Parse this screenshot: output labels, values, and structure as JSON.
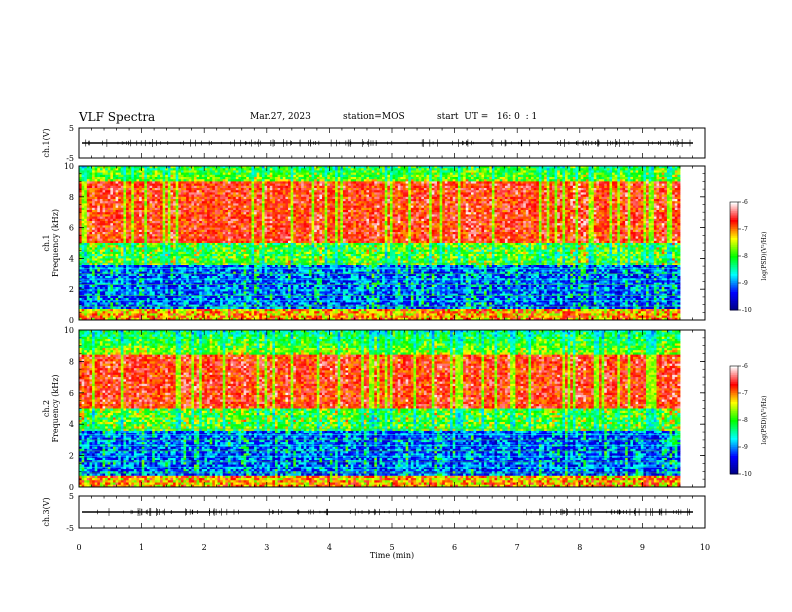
{
  "header": {
    "title": "VLF Spectra",
    "date": "Mar.27, 2023",
    "station": "station=MOS",
    "start": "start  UT =   16: 0  : 1"
  },
  "chart_data": [
    {
      "id": "ch1-waveform",
      "type": "line",
      "ylabel": "ch.1(V)",
      "ylim": [
        -5,
        5
      ],
      "yticks": [
        -5,
        5
      ],
      "description_value": 0
    },
    {
      "id": "ch1-spectrogram",
      "type": "heatmap",
      "ylabel": "ch.1\nFrequency (kHz)",
      "ylim": [
        0,
        10
      ],
      "yticks": [
        0,
        2,
        4,
        6,
        8,
        10
      ],
      "colorbar": {
        "label": "log(PSD)(V²/Hz)",
        "ticks": [
          -10,
          -9,
          -8,
          -7,
          -6
        ],
        "range": [
          -10,
          -6
        ]
      },
      "red_band_khz": [
        5.0,
        9.0
      ]
    },
    {
      "id": "ch2-spectrogram",
      "type": "heatmap",
      "ylabel": "ch.2\nFrequency (kHz)",
      "ylim": [
        0,
        10
      ],
      "yticks": [
        0,
        2,
        4,
        6,
        8,
        10
      ],
      "colorbar": {
        "label": "log(PSD)(V²/Hz)",
        "ticks": [
          -10,
          -9,
          -8,
          -7,
          -6
        ],
        "range": [
          -10,
          -6
        ]
      },
      "red_band_khz": [
        5.0,
        8.5
      ]
    },
    {
      "id": "ch3-waveform",
      "type": "line",
      "ylabel": "ch.3(V)",
      "ylim": [
        -5,
        5
      ],
      "yticks": [
        -5,
        5
      ],
      "description_value": 0
    }
  ],
  "xaxis": {
    "label": "Time  (min)",
    "range": [
      0,
      10
    ],
    "ticks": [
      0,
      1,
      2,
      3,
      4,
      5,
      6,
      7,
      8,
      9,
      10
    ]
  },
  "colors": {
    "colormap": [
      "#000080",
      "#0000ff",
      "#00ffff",
      "#00ff00",
      "#ffff00",
      "#ff0000",
      "#ffffff"
    ],
    "trace": "#000000"
  }
}
